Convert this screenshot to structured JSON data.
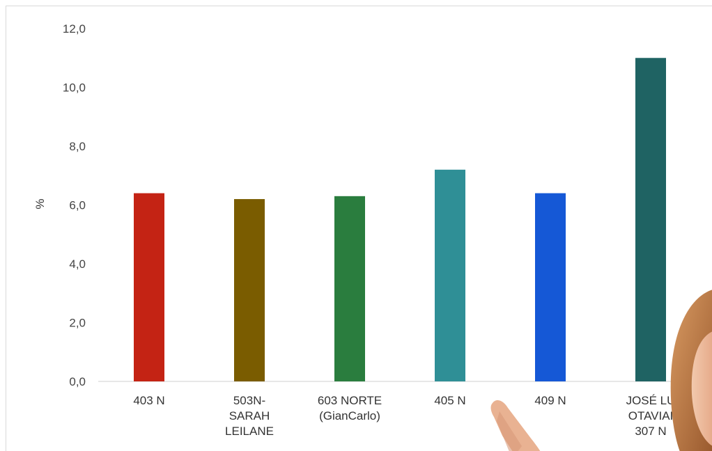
{
  "chart_data": {
    "type": "bar",
    "categories": [
      [
        "403 N"
      ],
      [
        "503N-",
        "SARAH",
        "LEILANE"
      ],
      [
        "603 NORTE",
        "(GianCarlo)"
      ],
      [
        "405 N"
      ],
      [
        "409 N"
      ],
      [
        "JOSÉ LU",
        "OTAVIAI",
        "307 N"
      ]
    ],
    "values": [
      6.4,
      6.2,
      6.3,
      7.2,
      6.4,
      11.0
    ],
    "colors": [
      "#c42314",
      "#7a5c00",
      "#2a7d3e",
      "#2f8f96",
      "#1558d6",
      "#1f6363"
    ],
    "title": "",
    "xlabel": "",
    "ylabel": "%",
    "ylim": [
      0,
      12
    ],
    "yticks": [
      "0,0",
      "2,0",
      "4,0",
      "6,0",
      "8,0",
      "10,0",
      "12,0"
    ],
    "grid": false,
    "legend": "none"
  },
  "overlay": {
    "figure": "person-pointing-photo"
  }
}
